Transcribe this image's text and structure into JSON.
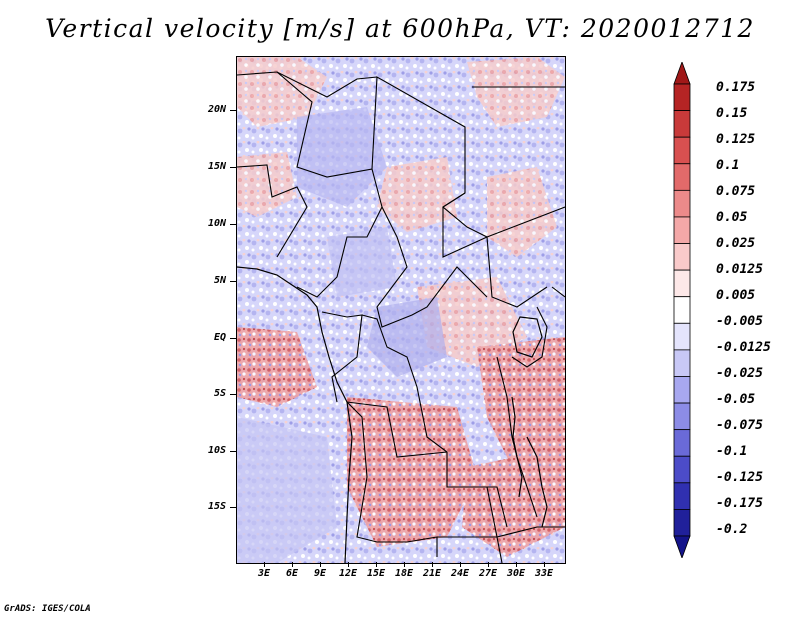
{
  "title": "Vertical velocity [m/s] at 600hPa, VT: 2020012712",
  "lat_labels": [
    "20N",
    "15N",
    "10N",
    "5N",
    "EQ",
    "5S",
    "10S",
    "15S"
  ],
  "lon_labels": [
    "3E",
    "6E",
    "9E",
    "12E",
    "15E",
    "18E",
    "21E",
    "24E",
    "27E",
    "30E",
    "33E"
  ],
  "colorbar": {
    "levels": [
      "0.175",
      "0.15",
      "0.125",
      "0.1",
      "0.075",
      "0.05",
      "0.025",
      "0.0125",
      "0.005",
      "-0.005",
      "-0.0125",
      "-0.025",
      "-0.05",
      "-0.075",
      "-0.1",
      "-0.125",
      "-0.175",
      "-0.2"
    ],
    "colors": [
      "#a01818",
      "#b52424",
      "#c83a3a",
      "#d85050",
      "#e26a6a",
      "#ec8a8a",
      "#f4a8a8",
      "#f9caca",
      "#fde8e8",
      "#ffffff",
      "#e4e4fc",
      "#c8c8f6",
      "#a8a8f0",
      "#8c8ce6",
      "#6a6ad8",
      "#4c4cc8",
      "#3030b0",
      "#20209a",
      "#14148a"
    ]
  },
  "footer": "GrADS: IGES/COLA"
}
